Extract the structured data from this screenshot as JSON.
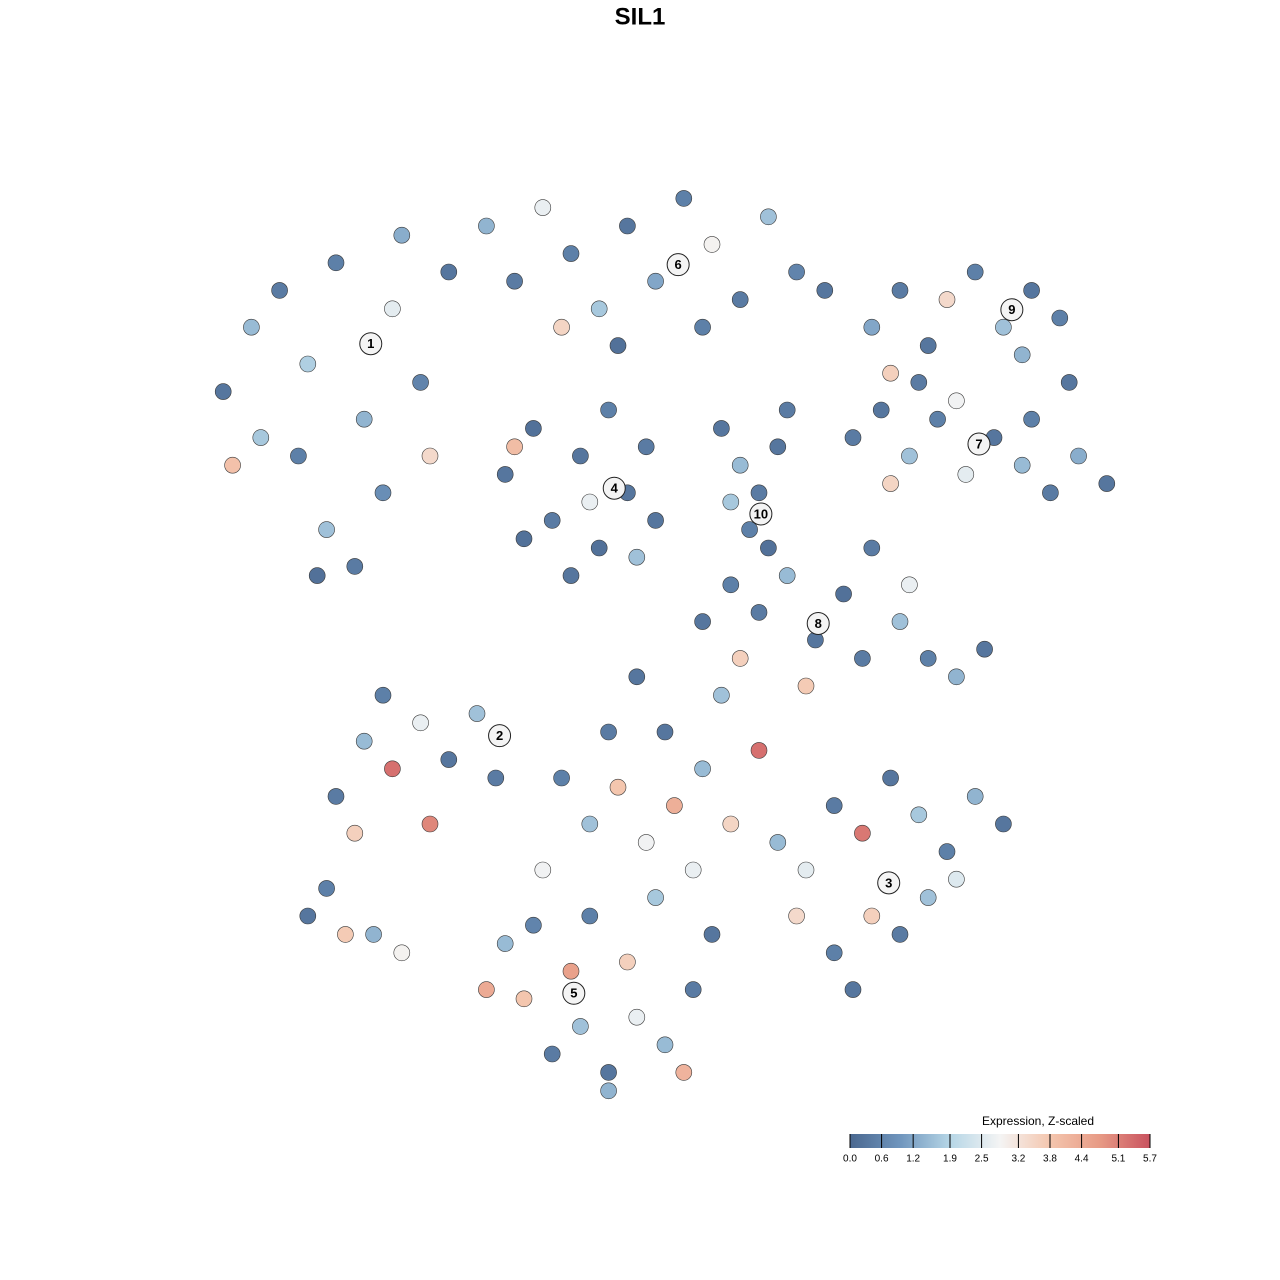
{
  "chart_data": {
    "type": "scatter",
    "title": "SIL1",
    "xlim": [
      0,
      100
    ],
    "ylim": [
      0,
      100
    ],
    "points": [
      {
        "x": 3,
        "y": 77,
        "value": 0.3
      },
      {
        "x": 6,
        "y": 84,
        "value": 1.5
      },
      {
        "x": 9,
        "y": 88,
        "value": 0.4
      },
      {
        "x": 12,
        "y": 80,
        "value": 1.8
      },
      {
        "x": 15,
        "y": 91,
        "value": 0.5
      },
      {
        "x": 18,
        "y": 74,
        "value": 1.4
      },
      {
        "x": 21,
        "y": 86,
        "value": 2.6
      },
      {
        "x": 24,
        "y": 78,
        "value": 0.6
      },
      {
        "x": 27,
        "y": 90,
        "value": 0.3
      },
      {
        "x": 11,
        "y": 70,
        "value": 0.5
      },
      {
        "x": 14,
        "y": 62,
        "value": 1.6
      },
      {
        "x": 17,
        "y": 58,
        "value": 0.4
      },
      {
        "x": 20,
        "y": 66,
        "value": 0.8
      },
      {
        "x": 7,
        "y": 72,
        "value": 1.7
      },
      {
        "x": 25,
        "y": 70,
        "value": 3.4
      },
      {
        "x": 4,
        "y": 69,
        "value": 3.9
      },
      {
        "x": 22,
        "y": 94,
        "value": 1.3
      },
      {
        "x": 13,
        "y": 57,
        "value": 0.2
      },
      {
        "x": 31,
        "y": 95,
        "value": 1.4
      },
      {
        "x": 34,
        "y": 89,
        "value": 0.4
      },
      {
        "x": 37,
        "y": 97,
        "value": 2.7
      },
      {
        "x": 40,
        "y": 92,
        "value": 0.5
      },
      {
        "x": 43,
        "y": 86,
        "value": 1.7
      },
      {
        "x": 46,
        "y": 95,
        "value": 0.3
      },
      {
        "x": 49,
        "y": 89,
        "value": 1.2
      },
      {
        "x": 52,
        "y": 98,
        "value": 0.5
      },
      {
        "x": 55,
        "y": 93,
        "value": 2.9
      },
      {
        "x": 58,
        "y": 87,
        "value": 0.4
      },
      {
        "x": 61,
        "y": 96,
        "value": 1.6
      },
      {
        "x": 64,
        "y": 90,
        "value": 0.6
      },
      {
        "x": 67,
        "y": 88,
        "value": 0.3
      },
      {
        "x": 45,
        "y": 82,
        "value": 0.2
      },
      {
        "x": 39,
        "y": 84,
        "value": 3.5
      },
      {
        "x": 54,
        "y": 84,
        "value": 0.5
      },
      {
        "x": 33,
        "y": 68,
        "value": 0.3
      },
      {
        "x": 36,
        "y": 73,
        "value": 0.2
      },
      {
        "x": 38,
        "y": 63,
        "value": 0.4
      },
      {
        "x": 41,
        "y": 70,
        "value": 0.3
      },
      {
        "x": 43,
        "y": 60,
        "value": 0.2
      },
      {
        "x": 44,
        "y": 75,
        "value": 0.5
      },
      {
        "x": 46,
        "y": 66,
        "value": 0.3
      },
      {
        "x": 48,
        "y": 71,
        "value": 0.4
      },
      {
        "x": 47,
        "y": 59,
        "value": 1.6
      },
      {
        "x": 40,
        "y": 57,
        "value": 0.3
      },
      {
        "x": 35,
        "y": 61,
        "value": 0.2
      },
      {
        "x": 42,
        "y": 65,
        "value": 2.7
      },
      {
        "x": 34,
        "y": 71,
        "value": 4.0
      },
      {
        "x": 49,
        "y": 63,
        "value": 0.3
      },
      {
        "x": 56,
        "y": 73,
        "value": 0.3
      },
      {
        "x": 58,
        "y": 69,
        "value": 1.5
      },
      {
        "x": 60,
        "y": 66,
        "value": 0.4
      },
      {
        "x": 62,
        "y": 71,
        "value": 0.3
      },
      {
        "x": 59,
        "y": 62,
        "value": 0.5
      },
      {
        "x": 61,
        "y": 60,
        "value": 0.2
      },
      {
        "x": 63,
        "y": 75,
        "value": 0.4
      },
      {
        "x": 57,
        "y": 65,
        "value": 1.7
      },
      {
        "x": 72,
        "y": 84,
        "value": 1.2
      },
      {
        "x": 75,
        "y": 88,
        "value": 0.4
      },
      {
        "x": 78,
        "y": 82,
        "value": 0.3
      },
      {
        "x": 80,
        "y": 87,
        "value": 3.4
      },
      {
        "x": 83,
        "y": 90,
        "value": 0.5
      },
      {
        "x": 86,
        "y": 84,
        "value": 1.6
      },
      {
        "x": 89,
        "y": 88,
        "value": 0.3
      },
      {
        "x": 92,
        "y": 85,
        "value": 0.5
      },
      {
        "x": 88,
        "y": 81,
        "value": 1.4
      },
      {
        "x": 77,
        "y": 78,
        "value": 0.4
      },
      {
        "x": 93,
        "y": 78,
        "value": 0.3
      },
      {
        "x": 74,
        "y": 79,
        "value": 3.6
      },
      {
        "x": 70,
        "y": 72,
        "value": 0.4
      },
      {
        "x": 73,
        "y": 75,
        "value": 0.3
      },
      {
        "x": 76,
        "y": 70,
        "value": 1.6
      },
      {
        "x": 79,
        "y": 74,
        "value": 0.5
      },
      {
        "x": 82,
        "y": 68,
        "value": 2.6
      },
      {
        "x": 85,
        "y": 72,
        "value": 0.3
      },
      {
        "x": 88,
        "y": 69,
        "value": 1.5
      },
      {
        "x": 91,
        "y": 66,
        "value": 0.4
      },
      {
        "x": 94,
        "y": 70,
        "value": 1.3
      },
      {
        "x": 97,
        "y": 67,
        "value": 0.3
      },
      {
        "x": 74,
        "y": 67,
        "value": 3.5
      },
      {
        "x": 81,
        "y": 76,
        "value": 2.8
      },
      {
        "x": 89,
        "y": 74,
        "value": 0.5
      },
      {
        "x": 54,
        "y": 52,
        "value": 0.3
      },
      {
        "x": 57,
        "y": 56,
        "value": 0.5
      },
      {
        "x": 60,
        "y": 53,
        "value": 0.4
      },
      {
        "x": 63,
        "y": 57,
        "value": 1.5
      },
      {
        "x": 66,
        "y": 50,
        "value": 0.3
      },
      {
        "x": 69,
        "y": 55,
        "value": 0.2
      },
      {
        "x": 72,
        "y": 60,
        "value": 0.4
      },
      {
        "x": 75,
        "y": 52,
        "value": 1.6
      },
      {
        "x": 78,
        "y": 48,
        "value": 0.5
      },
      {
        "x": 81,
        "y": 46,
        "value": 1.4
      },
      {
        "x": 84,
        "y": 49,
        "value": 0.3
      },
      {
        "x": 71,
        "y": 48,
        "value": 0.4
      },
      {
        "x": 65,
        "y": 45,
        "value": 3.7
      },
      {
        "x": 76,
        "y": 56,
        "value": 2.7
      },
      {
        "x": 15,
        "y": 33,
        "value": 0.4
      },
      {
        "x": 18,
        "y": 39,
        "value": 1.5
      },
      {
        "x": 21,
        "y": 36,
        "value": 5.3
      },
      {
        "x": 24,
        "y": 41,
        "value": 2.7
      },
      {
        "x": 27,
        "y": 37,
        "value": 0.3
      },
      {
        "x": 30,
        "y": 42,
        "value": 1.6
      },
      {
        "x": 17,
        "y": 29,
        "value": 3.6
      },
      {
        "x": 25,
        "y": 30,
        "value": 5.0
      },
      {
        "x": 32,
        "y": 35,
        "value": 0.4
      },
      {
        "x": 20,
        "y": 44,
        "value": 0.5
      },
      {
        "x": 12,
        "y": 20,
        "value": 0.3
      },
      {
        "x": 16,
        "y": 18,
        "value": 3.7
      },
      {
        "x": 19,
        "y": 18,
        "value": 1.4
      },
      {
        "x": 22,
        "y": 16,
        "value": 2.9
      },
      {
        "x": 14,
        "y": 23,
        "value": 0.5
      },
      {
        "x": 33,
        "y": 17,
        "value": 1.5
      },
      {
        "x": 35,
        "y": 11,
        "value": 3.8
      },
      {
        "x": 38,
        "y": 5,
        "value": 0.4
      },
      {
        "x": 41,
        "y": 8,
        "value": 1.6
      },
      {
        "x": 44,
        "y": 3,
        "value": 0.3
      },
      {
        "x": 47,
        "y": 9,
        "value": 2.7
      },
      {
        "x": 50,
        "y": 6,
        "value": 1.5
      },
      {
        "x": 53,
        "y": 12,
        "value": 0.4
      },
      {
        "x": 46,
        "y": 15,
        "value": 3.6
      },
      {
        "x": 42,
        "y": 20,
        "value": 0.5
      },
      {
        "x": 37,
        "y": 25,
        "value": 2.8
      },
      {
        "x": 49,
        "y": 22,
        "value": 1.7
      },
      {
        "x": 55,
        "y": 18,
        "value": 0.3
      },
      {
        "x": 40,
        "y": 14,
        "value": 4.6
      },
      {
        "x": 31,
        "y": 12,
        "value": 4.4
      },
      {
        "x": 36,
        "y": 19,
        "value": 0.6
      },
      {
        "x": 44,
        "y": 1,
        "value": 1.4
      },
      {
        "x": 52,
        "y": 3,
        "value": 4.2
      },
      {
        "x": 42,
        "y": 30,
        "value": 1.6
      },
      {
        "x": 45,
        "y": 34,
        "value": 3.8
      },
      {
        "x": 48,
        "y": 28,
        "value": 2.8
      },
      {
        "x": 51,
        "y": 32,
        "value": 4.3
      },
      {
        "x": 54,
        "y": 36,
        "value": 1.5
      },
      {
        "x": 57,
        "y": 30,
        "value": 3.5
      },
      {
        "x": 60,
        "y": 38,
        "value": 5.3
      },
      {
        "x": 44,
        "y": 40,
        "value": 0.4
      },
      {
        "x": 50,
        "y": 40,
        "value": 0.3
      },
      {
        "x": 56,
        "y": 44,
        "value": 1.6
      },
      {
        "x": 39,
        "y": 35,
        "value": 0.5
      },
      {
        "x": 53,
        "y": 25,
        "value": 2.7
      },
      {
        "x": 47,
        "y": 46,
        "value": 0.3
      },
      {
        "x": 58,
        "y": 48,
        "value": 3.6
      },
      {
        "x": 62,
        "y": 28,
        "value": 1.5
      },
      {
        "x": 65,
        "y": 25,
        "value": 2.6
      },
      {
        "x": 68,
        "y": 32,
        "value": 0.4
      },
      {
        "x": 71,
        "y": 29,
        "value": 5.2
      },
      {
        "x": 74,
        "y": 35,
        "value": 0.3
      },
      {
        "x": 77,
        "y": 31,
        "value": 1.7
      },
      {
        "x": 80,
        "y": 27,
        "value": 0.5
      },
      {
        "x": 83,
        "y": 33,
        "value": 1.4
      },
      {
        "x": 86,
        "y": 30,
        "value": 0.3
      },
      {
        "x": 72,
        "y": 20,
        "value": 3.6
      },
      {
        "x": 75,
        "y": 18,
        "value": 0.4
      },
      {
        "x": 78,
        "y": 22,
        "value": 1.6
      },
      {
        "x": 68,
        "y": 16,
        "value": 0.5
      },
      {
        "x": 64,
        "y": 20,
        "value": 3.4
      },
      {
        "x": 81,
        "y": 24,
        "value": 2.5
      },
      {
        "x": 70,
        "y": 12,
        "value": 0.3
      }
    ],
    "cluster_labels": [
      {
        "text": "1",
        "x": 18.7,
        "y": 82.2
      },
      {
        "text": "2",
        "x": 32.4,
        "y": 39.6
      },
      {
        "text": "3",
        "x": 73.8,
        "y": 23.6
      },
      {
        "text": "4",
        "x": 44.6,
        "y": 66.5
      },
      {
        "text": "5",
        "x": 40.3,
        "y": 11.6
      },
      {
        "text": "6",
        "x": 51.4,
        "y": 90.8
      },
      {
        "text": "7",
        "x": 83.4,
        "y": 71.3
      },
      {
        "text": "8",
        "x": 66.3,
        "y": 51.8
      },
      {
        "text": "9",
        "x": 86.9,
        "y": 85.9
      },
      {
        "text": "10",
        "x": 60.2,
        "y": 63.7
      }
    ],
    "colorbar": {
      "title": "Expression, Z-scaled",
      "lim": [
        0,
        5.7
      ],
      "ticks": [
        {
          "value": 0,
          "label": "0.0"
        },
        0.6,
        1.2,
        1.9,
        2.5,
        3.2,
        3.8,
        4.4,
        5.1,
        5.7
      ],
      "colors": [
        "#4a6890",
        "#6f95bd",
        "#b6d6e6",
        "#f4f4f4",
        "#f4c6ae",
        "#e79a85",
        "#c9525f"
      ]
    }
  }
}
